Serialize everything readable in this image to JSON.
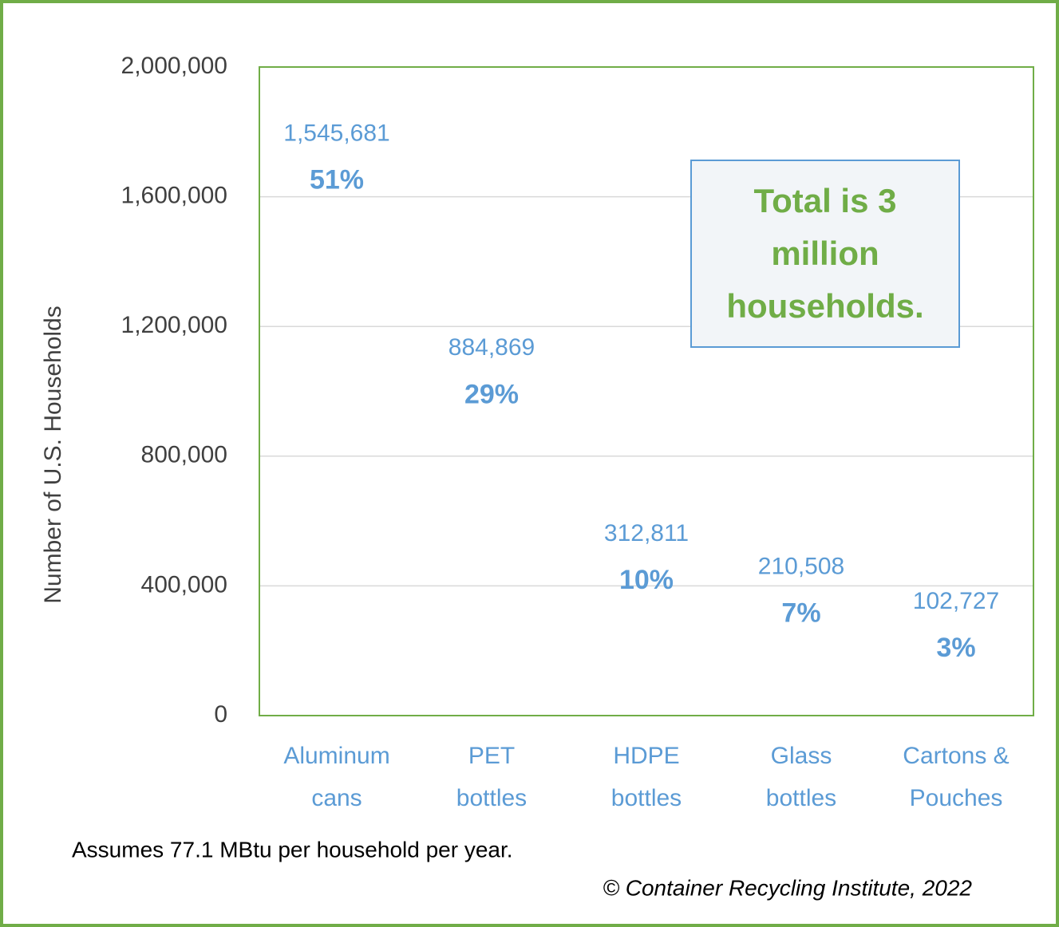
{
  "chart_data": {
    "type": "bar",
    "categories": [
      "Aluminum cans",
      "PET bottles",
      "HDPE bottles",
      "Glass bottles",
      "Cartons & Pouches"
    ],
    "values": [
      1545681,
      884869,
      312811,
      210508,
      102727
    ],
    "value_labels": [
      "1,545,681",
      "884,869",
      "312,811",
      "210,508",
      "102,727"
    ],
    "shares": [
      51,
      29,
      10,
      7,
      3
    ],
    "share_labels": [
      "51%",
      "29%",
      "10%",
      "7%",
      "3%"
    ],
    "color": "#5b9bd5",
    "y_label": "Number of U.S. Households",
    "ylim": [
      0,
      2000000
    ],
    "yticks": [
      0,
      {
        "value": 400000,
        "label": "400,000"
      },
      {
        "value": 800000,
        "label": "800,000"
      },
      {
        "value": 1200000,
        "label": "1,200,000"
      },
      {
        "value": 1600000,
        "label": "1,600,000"
      },
      {
        "value": 2000000,
        "label": "2,000,000"
      }
    ],
    "grid": true,
    "annotation": "Total is 3 million households.",
    "note": "Assumes 77.1 MBtu per household per year.",
    "credit": "© Container Recycling Institute, 2022"
  }
}
